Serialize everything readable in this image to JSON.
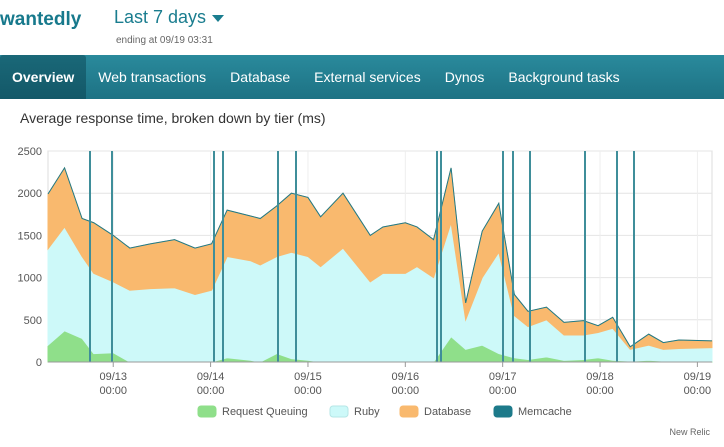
{
  "header": {
    "logo": "wantedly",
    "range": "Last 7 days",
    "ending": "ending at 09/19 03:31"
  },
  "nav": {
    "tabs": [
      "Overview",
      "Web transactions",
      "Database",
      "External services",
      "Dynos",
      "Background tasks"
    ]
  },
  "footer": "New Relic",
  "chart_data": {
    "type": "area",
    "stacked": true,
    "title": "Average response time, broken down by tier (ms)",
    "x": [
      12.33,
      12.5,
      12.68,
      12.8,
      13.0,
      13.17,
      13.38,
      13.63,
      13.84,
      14.01,
      14.17,
      14.41,
      14.51,
      14.68,
      14.83,
      15.0,
      15.13,
      15.36,
      15.64,
      15.77,
      16.0,
      16.12,
      16.29,
      16.47,
      16.62,
      16.79,
      16.96,
      17.12,
      17.26,
      17.45,
      17.63,
      17.83,
      17.98,
      18.13,
      18.31,
      18.5,
      18.65,
      18.81,
      19.15
    ],
    "series": [
      {
        "name": "Request Queuing",
        "color": "#8fdf8a",
        "values": [
          200,
          370,
          280,
          100,
          110,
          0,
          0,
          0,
          0,
          0,
          50,
          20,
          0,
          100,
          40,
          20,
          0,
          0,
          0,
          0,
          0,
          0,
          0,
          300,
          150,
          200,
          100,
          50,
          30,
          60,
          20,
          30,
          50,
          20,
          10,
          20,
          10,
          10,
          10
        ]
      },
      {
        "name": "Ruby",
        "color": "#cdf9f9",
        "values": [
          1140,
          1230,
          970,
          950,
          840,
          850,
          870,
          880,
          800,
          850,
          1200,
          1180,
          1150,
          1150,
          1260,
          1230,
          1130,
          1350,
          950,
          1050,
          1050,
          1130,
          1000,
          1350,
          350,
          800,
          1200,
          500,
          390,
          440,
          300,
          290,
          300,
          380,
          140,
          180,
          140,
          150,
          160
        ]
      },
      {
        "name": "Database",
        "color": "#f9b96e",
        "values": [
          650,
          700,
          450,
          600,
          550,
          500,
          530,
          570,
          550,
          550,
          550,
          530,
          550,
          600,
          700,
          700,
          590,
          650,
          550,
          550,
          600,
          470,
          450,
          650,
          200,
          550,
          580,
          250,
          180,
          150,
          150,
          170,
          80,
          130,
          30,
          130,
          80,
          100,
          80
        ]
      },
      {
        "name": "Memcache",
        "color": "#1d7a8a",
        "values": [
          0,
          0,
          0,
          0,
          0,
          0,
          0,
          0,
          0,
          0,
          0,
          0,
          0,
          0,
          0,
          0,
          0,
          0,
          0,
          0,
          0,
          0,
          0,
          0,
          0,
          0,
          0,
          0,
          0,
          0,
          0,
          0,
          0,
          0,
          0,
          0,
          0,
          0,
          0
        ]
      }
    ],
    "xlim": [
      12.33,
      19.15
    ],
    "xticks": [
      {
        "value": 13,
        "label": "09/13 00:00"
      },
      {
        "value": 14,
        "label": "09/14 00:00"
      },
      {
        "value": 15,
        "label": "09/15 00:00"
      },
      {
        "value": 16,
        "label": "09/16 00:00"
      },
      {
        "value": 17,
        "label": "09/17 00:00"
      },
      {
        "value": 18,
        "label": "09/18 00:00"
      },
      {
        "value": 19,
        "label": "09/19 00:00"
      }
    ],
    "ylim": [
      0,
      2500
    ],
    "yticks": [
      0,
      500,
      1000,
      1500,
      2000,
      2500
    ],
    "grid": true,
    "legend": "bottom"
  }
}
